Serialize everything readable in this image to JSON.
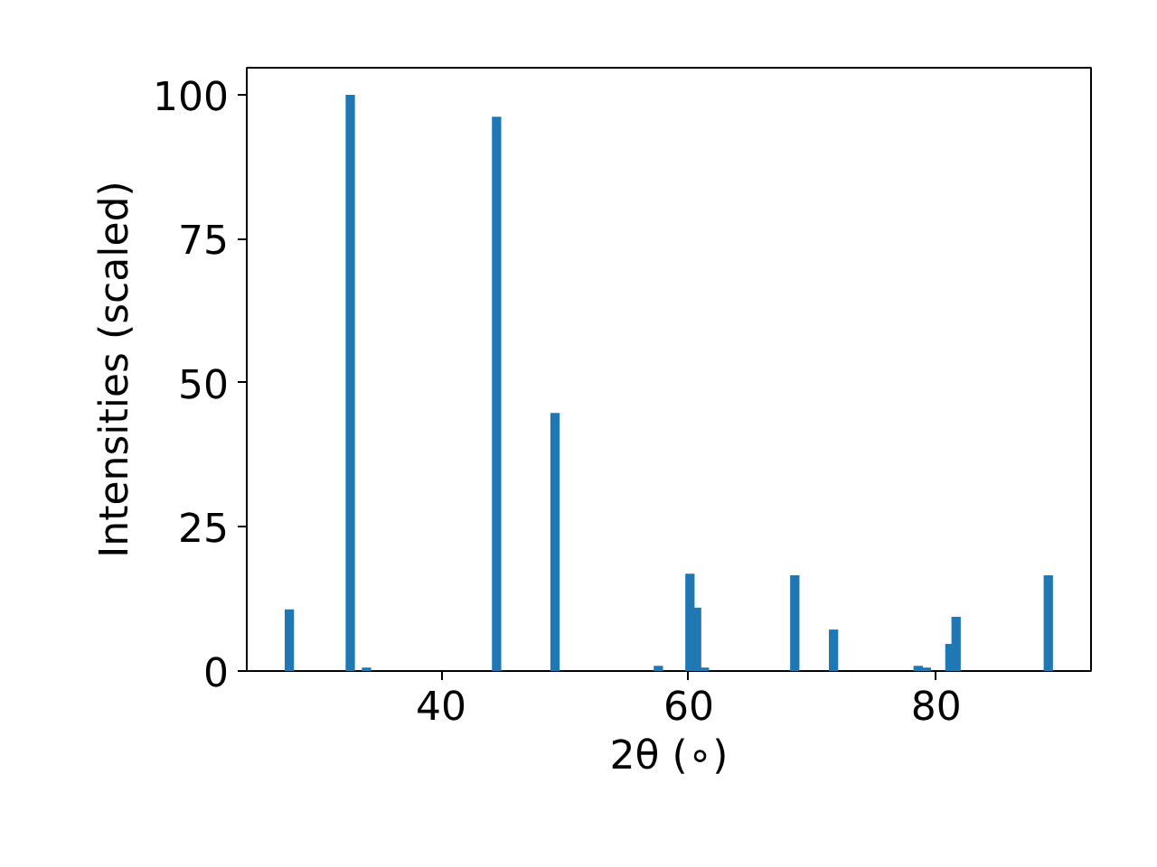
{
  "chart_data": {
    "type": "bar",
    "xlabel": "2θ (∘)",
    "ylabel": "Intensities (scaled)",
    "color": "#1f77b4",
    "x": [
      27.74,
      32.66,
      33.97,
      44.48,
      49.2,
      57.55,
      60.1,
      60.64,
      61.27,
      68.57,
      71.7,
      78.54,
      79.2,
      81.1,
      81.6,
      89.05
    ],
    "values": [
      10.7,
      100,
      0.6,
      96.2,
      44.8,
      0.9,
      16.9,
      11.0,
      0.6,
      16.6,
      7.2,
      0.9,
      0.6,
      4.7,
      9.4,
      16.6
    ],
    "xlim": [
      24.3,
      92.5
    ],
    "ylim": [
      0,
      104.7
    ],
    "xticks": [
      40,
      60,
      80
    ],
    "yticks": [
      0,
      25,
      50,
      75,
      100
    ],
    "grid": false
  }
}
